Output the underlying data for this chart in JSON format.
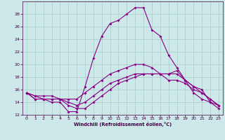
{
  "xlabel": "Windchill (Refroidissement éolien,°C)",
  "bg_color": "#cce8e8",
  "line_color": "#880088",
  "grid_color": "#aacccc",
  "xlim": [
    -0.5,
    23.5
  ],
  "ylim": [
    12,
    30
  ],
  "yticks": [
    12,
    14,
    16,
    18,
    20,
    22,
    24,
    26,
    28
  ],
  "xticks": [
    0,
    1,
    2,
    3,
    4,
    5,
    6,
    7,
    8,
    9,
    10,
    11,
    12,
    13,
    14,
    15,
    16,
    17,
    18,
    19,
    20,
    21,
    22,
    23
  ],
  "line1_x": [
    0,
    1,
    2,
    3,
    4,
    5,
    6,
    7,
    8,
    9,
    10,
    11,
    12,
    13,
    14,
    15,
    16,
    17,
    18,
    19,
    20,
    21,
    22,
    23
  ],
  "line1_y": [
    15.5,
    14.5,
    14.5,
    14.0,
    14.0,
    12.5,
    12.5,
    16.5,
    21.0,
    24.5,
    26.5,
    27.0,
    28.0,
    29.0,
    29.0,
    25.5,
    24.5,
    21.5,
    19.5,
    17.5,
    15.5,
    14.5,
    14.0,
    13.5
  ],
  "line2_x": [
    0,
    1,
    2,
    3,
    4,
    5,
    6,
    7,
    8,
    9,
    10,
    11,
    12,
    13,
    14,
    15,
    16,
    17,
    18,
    19,
    20,
    21,
    22,
    23
  ],
  "line2_y": [
    15.5,
    14.5,
    14.5,
    14.5,
    14.5,
    13.5,
    13.0,
    13.0,
    14.0,
    15.0,
    16.0,
    17.0,
    17.5,
    18.0,
    18.5,
    18.5,
    18.5,
    18.5,
    19.0,
    17.5,
    16.5,
    16.0,
    14.0,
    13.0
  ],
  "line3_x": [
    0,
    1,
    2,
    3,
    4,
    5,
    6,
    7,
    8,
    9,
    10,
    11,
    12,
    13,
    14,
    15,
    16,
    17,
    18,
    19,
    20,
    21,
    22,
    23
  ],
  "line3_y": [
    15.5,
    15.0,
    14.5,
    14.5,
    14.5,
    14.0,
    13.5,
    14.0,
    15.0,
    16.0,
    17.0,
    17.5,
    18.0,
    18.5,
    18.5,
    18.5,
    18.5,
    18.5,
    18.5,
    17.5,
    16.5,
    15.5,
    14.5,
    13.5
  ],
  "line4_x": [
    0,
    1,
    2,
    3,
    4,
    5,
    6,
    7,
    8,
    9,
    10,
    11,
    12,
    13,
    14,
    15,
    16,
    17,
    18,
    19,
    20,
    21,
    22,
    23
  ],
  "line4_y": [
    15.5,
    15.0,
    15.0,
    15.0,
    14.5,
    14.5,
    14.5,
    15.5,
    16.5,
    17.5,
    18.5,
    19.0,
    19.5,
    20.0,
    20.0,
    19.5,
    18.5,
    17.5,
    17.5,
    17.0,
    16.0,
    15.5,
    14.5,
    13.5
  ]
}
